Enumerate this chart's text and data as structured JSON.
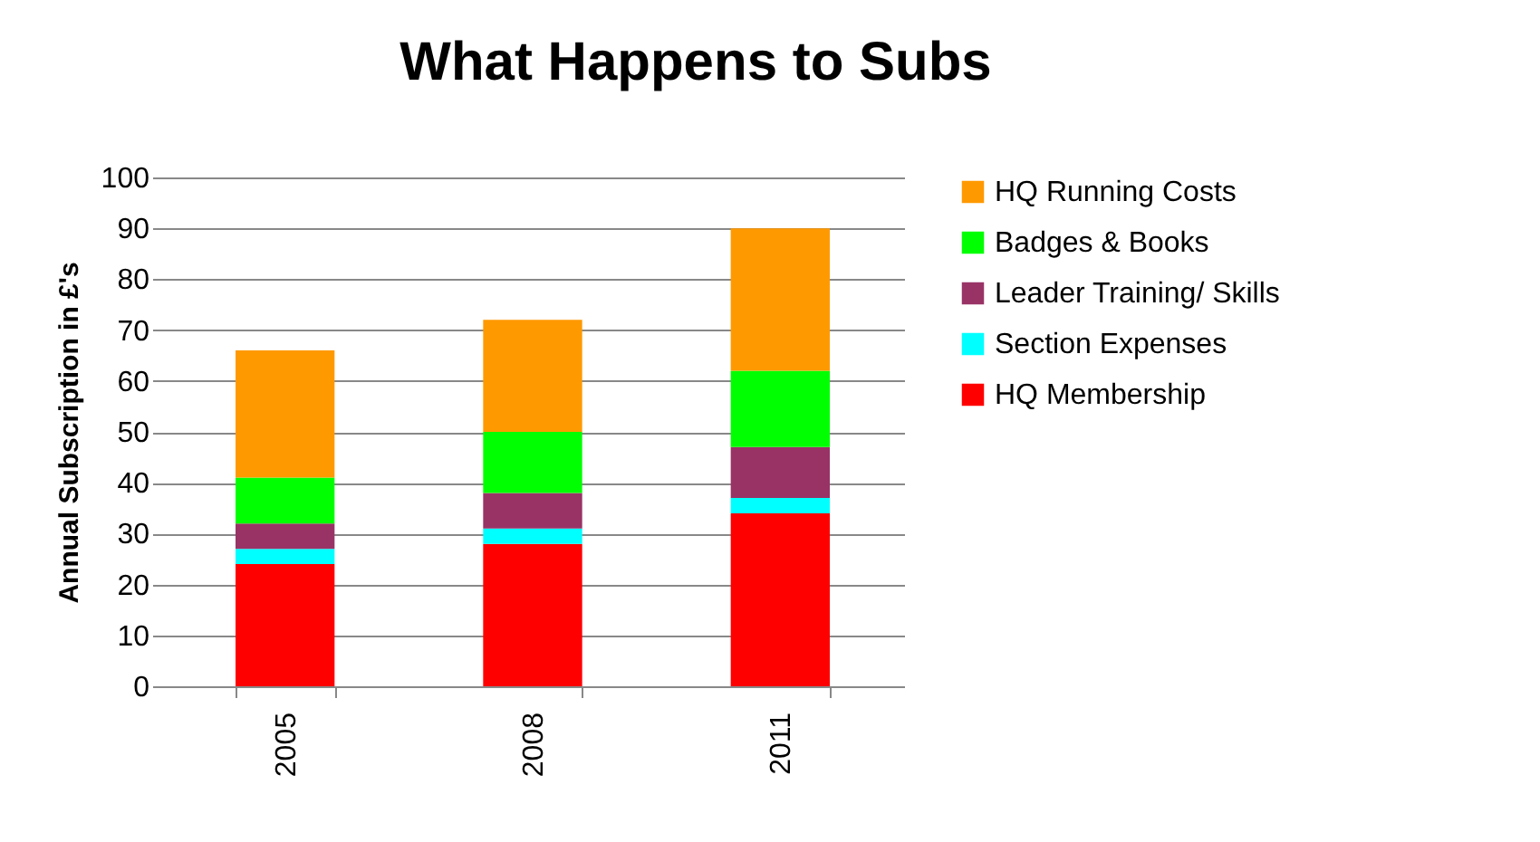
{
  "chart_data": {
    "type": "bar",
    "title": "What Happens to Subs",
    "ylabel": "Annual Subscription in £'s",
    "categories": [
      "2005",
      "2008",
      "2011"
    ],
    "stacked": true,
    "series": [
      {
        "name": "HQ Membership",
        "color": "#ff0000",
        "values": [
          24,
          28,
          34
        ]
      },
      {
        "name": "Section Expenses",
        "color": "#00ffff",
        "values": [
          3,
          3,
          3
        ]
      },
      {
        "name": "Leader Training/ Skills",
        "color": "#993366",
        "values": [
          5,
          7,
          10
        ]
      },
      {
        "name": "Badges & Books",
        "color": "#00ff00",
        "values": [
          9,
          12,
          15
        ]
      },
      {
        "name": "HQ Running Costs",
        "color": "#ff9900",
        "values": [
          25,
          22,
          28
        ]
      }
    ],
    "ylim": [
      0,
      100
    ],
    "yticks": [
      0,
      10,
      20,
      30,
      40,
      50,
      60,
      70,
      80,
      90,
      100
    ],
    "grid": "y",
    "legend": "right"
  }
}
